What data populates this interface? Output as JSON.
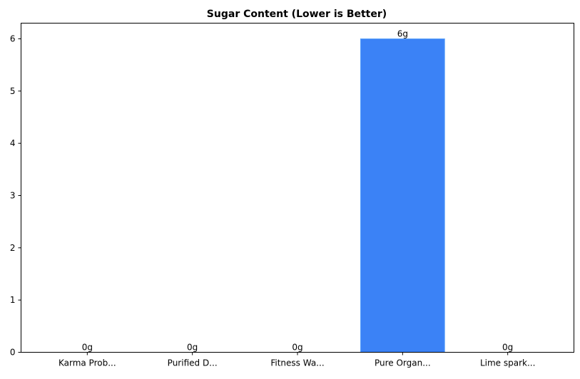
{
  "chart_data": {
    "type": "bar",
    "title": "Sugar Content (Lower is Better)",
    "xlabel": "",
    "ylabel": "",
    "categories": [
      "Karma Prob...",
      "Purified D...",
      "Fitness Wa...",
      "Pure Organ...",
      "Lime spark..."
    ],
    "values": [
      0,
      0,
      0,
      6,
      0
    ],
    "data_labels": [
      "0g",
      "0g",
      "0g",
      "6g",
      "0g"
    ],
    "ylim": [
      0,
      6.3
    ],
    "yticks": [
      0,
      1,
      2,
      3,
      4,
      5,
      6
    ],
    "grid": false,
    "bar_color": "#3b82f6",
    "bar_edge_color": "#60a5fa"
  }
}
